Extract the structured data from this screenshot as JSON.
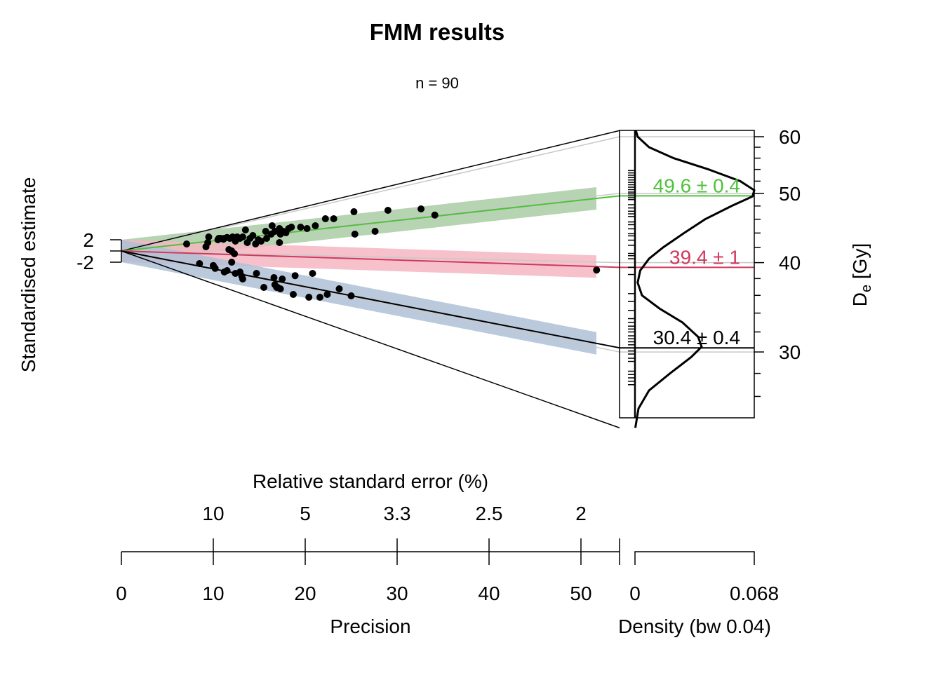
{
  "chart_data": {
    "type": "scatter",
    "subtype": "radial-plot",
    "title": "FMM results",
    "subtitle": "n = 90",
    "ylabel": "Standardised estimate",
    "xlabel": "Precision",
    "x2label": "Relative standard error (%)",
    "zlabel_main": "D",
    "zlabel_sub": "e",
    "zlabel_unit": " [Gy]",
    "density_label": "Density (bw 0.04)",
    "y_ticks": [
      {
        "value": 2,
        "label": "2"
      },
      {
        "value": -2,
        "label": "-2"
      }
    ],
    "x_ticks": [
      {
        "value": 0,
        "label": "0"
      },
      {
        "value": 10,
        "label": "10"
      },
      {
        "value": 20,
        "label": "20"
      },
      {
        "value": 30,
        "label": "30"
      },
      {
        "value": 40,
        "label": "40"
      },
      {
        "value": 50,
        "label": "50"
      }
    ],
    "x_max": 54.2,
    "x2_ticks": [
      {
        "precision": 10,
        "label": "10"
      },
      {
        "precision": 20,
        "label": "5"
      },
      {
        "precision": 30,
        "label": "3.3"
      },
      {
        "precision": 40,
        "label": "2.5"
      },
      {
        "precision": 50,
        "label": "2"
      }
    ],
    "z_ticks_major": [
      {
        "value": 60,
        "label": "60"
      },
      {
        "value": 50,
        "label": "50"
      },
      {
        "value": 40,
        "label": "40"
      },
      {
        "value": 30,
        "label": "30"
      }
    ],
    "z_ticks_minor": [
      58,
      56,
      54,
      52,
      48,
      46,
      44,
      42,
      38,
      36,
      34,
      32,
      28,
      26
    ],
    "z_range": [
      23.5,
      61.2
    ],
    "z_reference": 41.5,
    "density_ticks": [
      {
        "value": 0,
        "label": "0"
      },
      {
        "value": 0.068,
        "label": "0.068"
      }
    ],
    "components": [
      {
        "value": 49.6,
        "error": 0.4,
        "label": "49.6 ± 0.4",
        "color": "#4fc13b",
        "band": "#a9cba4"
      },
      {
        "value": 39.4,
        "error": 1,
        "label": "39.4 ± 1",
        "color": "#d1385e",
        "band": "#f4b6c2"
      },
      {
        "value": 30.4,
        "error": 0.4,
        "label": "30.4 ± 0.4",
        "color": "#000000",
        "band": "#aec0d6"
      }
    ],
    "radial_limits": [
      61.2,
      23.5
    ],
    "grey_lines": [
      60,
      50,
      40,
      30
    ],
    "points": [
      {
        "x": 7.1,
        "z": 1.25
      },
      {
        "x": 9.2,
        "z": 0.75
      },
      {
        "x": 9.4,
        "z": 1.5
      },
      {
        "x": 9.5,
        "z": 2.5
      },
      {
        "x": 10.5,
        "z": 2.0
      },
      {
        "x": 10.6,
        "z": 2.25
      },
      {
        "x": 10.8,
        "z": 2.25
      },
      {
        "x": 11.1,
        "z": 2.1
      },
      {
        "x": 11.2,
        "z": 2.25
      },
      {
        "x": 11.5,
        "z": 2.4
      },
      {
        "x": 11.8,
        "z": 2.25
      },
      {
        "x": 12.1,
        "z": 2.5
      },
      {
        "x": 12.4,
        "z": 1.75
      },
      {
        "x": 12.6,
        "z": 2.5
      },
      {
        "x": 12.9,
        "z": 2.25
      },
      {
        "x": 13.2,
        "z": 2.5
      },
      {
        "x": 13.5,
        "z": 3.75
      },
      {
        "x": 13.7,
        "z": 1.5
      },
      {
        "x": 14.0,
        "z": 2.25
      },
      {
        "x": 14.3,
        "z": 2.75
      },
      {
        "x": 14.6,
        "z": 1.25
      },
      {
        "x": 14.9,
        "z": 2.0
      },
      {
        "x": 15.2,
        "z": 1.75
      },
      {
        "x": 15.7,
        "z": 3.5
      },
      {
        "x": 15.8,
        "z": 2.25
      },
      {
        "x": 16.3,
        "z": 3.0
      },
      {
        "x": 16.4,
        "z": 4.5
      },
      {
        "x": 16.7,
        "z": 3.5
      },
      {
        "x": 17.2,
        "z": 4.0
      },
      {
        "x": 17.3,
        "z": 3.0
      },
      {
        "x": 17.6,
        "z": 3.5
      },
      {
        "x": 17.9,
        "z": 3.25
      },
      {
        "x": 18.2,
        "z": 4.0
      },
      {
        "x": 18.5,
        "z": 4.25
      },
      {
        "x": 19.5,
        "z": 4.25
      },
      {
        "x": 20.2,
        "z": 4.0
      },
      {
        "x": 21.1,
        "z": 4.5
      },
      {
        "x": 22.2,
        "z": 5.75
      },
      {
        "x": 23.1,
        "z": 5.75
      },
      {
        "x": 25.3,
        "z": 7.0
      },
      {
        "x": 25.4,
        "z": 3.0
      },
      {
        "x": 27.6,
        "z": 3.5
      },
      {
        "x": 29.0,
        "z": 7.25
      },
      {
        "x": 32.6,
        "z": 7.5
      },
      {
        "x": 34.1,
        "z": 6.4
      },
      {
        "x": 11.7,
        "z": 0.25
      },
      {
        "x": 12.0,
        "z": 0.0
      },
      {
        "x": 12.3,
        "z": -0.5
      },
      {
        "x": 12.0,
        "z": -2.0
      },
      {
        "x": 17.2,
        "z": 1.5
      },
      {
        "x": 51.7,
        "z": -3.4
      },
      {
        "x": 8.5,
        "z": -2.25
      },
      {
        "x": 10.0,
        "z": -2.6
      },
      {
        "x": 10.2,
        "z": -3.1
      },
      {
        "x": 11.2,
        "z": -3.75
      },
      {
        "x": 11.5,
        "z": -3.5
      },
      {
        "x": 12.4,
        "z": -4.0
      },
      {
        "x": 12.9,
        "z": -3.75
      },
      {
        "x": 13.1,
        "z": -4.5
      },
      {
        "x": 13.2,
        "z": -5.0
      },
      {
        "x": 14.7,
        "z": -4.0
      },
      {
        "x": 15.5,
        "z": -6.5
      },
      {
        "x": 16.6,
        "z": -4.75
      },
      {
        "x": 16.9,
        "z": -6.5
      },
      {
        "x": 17.0,
        "z": -6.5
      },
      {
        "x": 17.5,
        "z": -5.0
      },
      {
        "x": 18.7,
        "z": -7.75
      },
      {
        "x": 18.9,
        "z": -4.4
      },
      {
        "x": 20.4,
        "z": -8.25
      },
      {
        "x": 20.8,
        "z": -4.0
      },
      {
        "x": 21.6,
        "z": -8.25
      },
      {
        "x": 22.4,
        "z": -7.75
      },
      {
        "x": 23.7,
        "z": -6.75
      },
      {
        "x": 25.0,
        "z": -8.0
      },
      {
        "x": 16.7,
        "z": -6.0
      },
      {
        "x": 17.3,
        "z": -6.75
      }
    ],
    "density_curve": [
      [
        61.2,
        0.0005
      ],
      [
        60,
        0.0015
      ],
      [
        58,
        0.008
      ],
      [
        56,
        0.022
      ],
      [
        54,
        0.042
      ],
      [
        52,
        0.06
      ],
      [
        50.5,
        0.068
      ],
      [
        49.5,
        0.067
      ],
      [
        48,
        0.055
      ],
      [
        46,
        0.04
      ],
      [
        44,
        0.028
      ],
      [
        42,
        0.016
      ],
      [
        40.5,
        0.008
      ],
      [
        39,
        0.003
      ],
      [
        37.5,
        0.0015
      ],
      [
        36,
        0.004
      ],
      [
        34.5,
        0.014
      ],
      [
        33,
        0.027
      ],
      [
        31.5,
        0.036
      ],
      [
        30.5,
        0.038
      ],
      [
        29.5,
        0.032
      ],
      [
        28,
        0.02
      ],
      [
        26.5,
        0.008
      ],
      [
        25,
        0.002
      ],
      [
        23.5,
        0.0002
      ]
    ],
    "rug": [
      53.8,
      53.4,
      53.0,
      52.6,
      52.2,
      51.8,
      51.4,
      51.0,
      50.6,
      50.2,
      49.9,
      49.6,
      49.3,
      49.0,
      48.2,
      47.7,
      47.2,
      46.8,
      46.4,
      45.6,
      45.2,
      44.6,
      43.9,
      43.6,
      43.0,
      42.3,
      41.2,
      40.9,
      40.5,
      39.4,
      38.5,
      36.2,
      35.3,
      34.3,
      33.4,
      33.0,
      32.6,
      32.3,
      32.0,
      31.6,
      31.3,
      31.0,
      30.7,
      30.1,
      29.8,
      29.4,
      29.1,
      28.2,
      27.9,
      27.6,
      27.3,
      27.0
    ]
  }
}
